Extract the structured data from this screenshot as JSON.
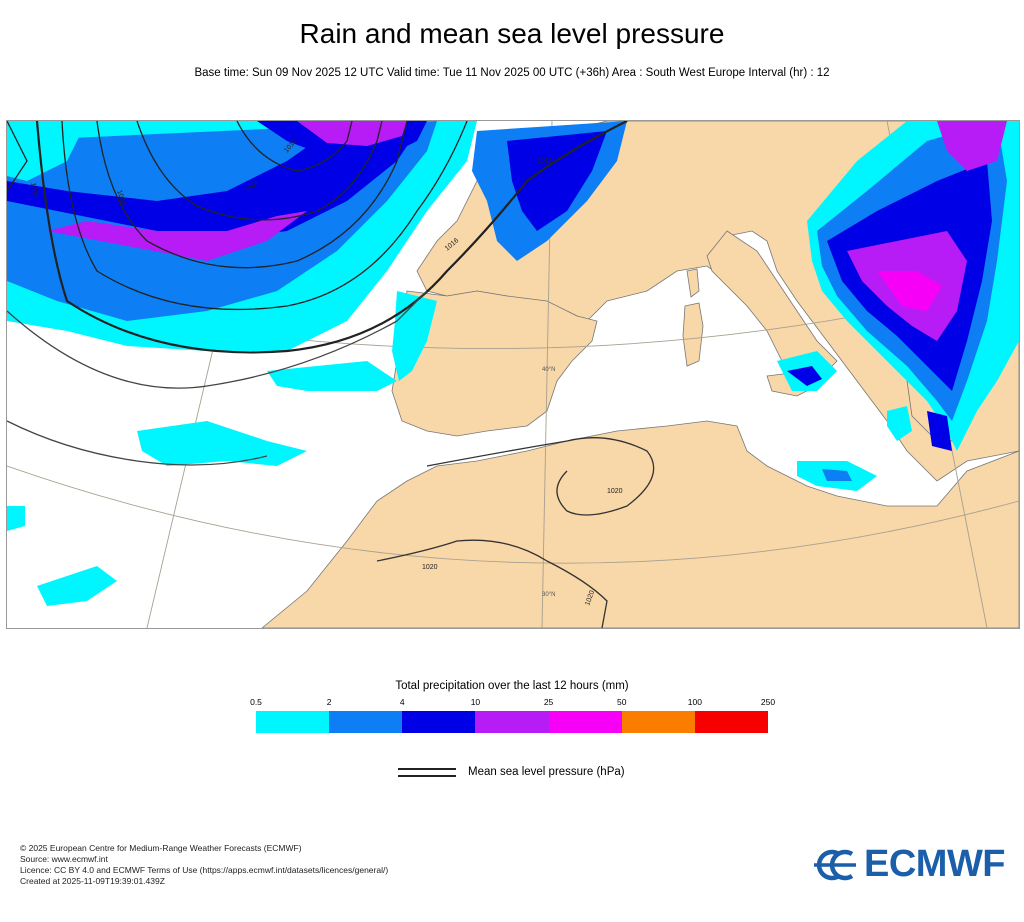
{
  "title": "Rain and mean sea level pressure",
  "subtitle": "Base time: Sun 09 Nov 2025 12 UTC Valid time: Tue 11 Nov 2025 00 UTC (+36h) Area : South West Europe Interval (hr) : 12",
  "map": {
    "land_color": "#f8d7a8",
    "sea_color": "#ffffff",
    "isobar_labels": [
      "1020",
      "1020",
      "1020",
      "1016",
      "1020",
      "1004",
      "1008",
      "1016",
      "1012"
    ],
    "graticule_labels": [
      "40°N",
      "30°N"
    ]
  },
  "legend": {
    "title": "Total precipitation over the last 12 hours (mm)",
    "ticks": [
      "0.5",
      "2",
      "4",
      "10",
      "25",
      "50",
      "100",
      "250"
    ],
    "colors": [
      "#00f6ff",
      "#0d7ef4",
      "#0000e6",
      "#b81cf6",
      "#f700f7",
      "#fa7d00",
      "#f70000"
    ],
    "msl_label": "Mean sea level pressure (hPa)"
  },
  "footer": {
    "lines": [
      "© 2025 European Centre for Medium-Range Weather Forecasts (ECMWF)",
      "Source: www.ecmwf.int",
      "Licence: CC BY 4.0 and ECMWF Terms of Use (https://apps.ecmwf.int/datasets/licences/general/)",
      "Created at 2025-11-09T19:39:01.439Z"
    ]
  },
  "logo": {
    "text": "ECMWF",
    "color": "#1b5ea9"
  }
}
